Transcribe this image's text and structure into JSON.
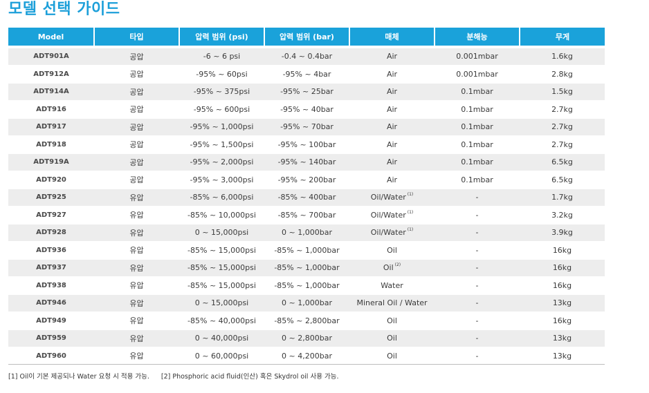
{
  "title": "모델 선택 가이드",
  "table": {
    "headers": [
      "Model",
      "타입",
      "압력 범위 (psi)",
      "압력 범위 (bar)",
      "매체",
      "분해능",
      "무게"
    ],
    "rows": [
      {
        "model": "ADT901A",
        "type": "공압",
        "psi": "-6 ~ 6 psi",
        "bar": "-0.4 ~ 0.4bar",
        "media": "Air",
        "media_note": "",
        "resolution": "0.001mbar",
        "weight": "1.6kg"
      },
      {
        "model": "ADT912A",
        "type": "공압",
        "psi": "-95% ~ 60psi",
        "bar": "-95% ~ 4bar",
        "media": "Air",
        "media_note": "",
        "resolution": "0.001mbar",
        "weight": "2.8kg"
      },
      {
        "model": "ADT914A",
        "type": "공압",
        "psi": "-95% ~ 375psi",
        "bar": "-95% ~ 25bar",
        "media": "Air",
        "media_note": "",
        "resolution": "0.1mbar",
        "weight": "1.5kg"
      },
      {
        "model": "ADT916",
        "type": "공압",
        "psi": "-95% ~ 600psi",
        "bar": "-95% ~ 40bar",
        "media": "Air",
        "media_note": "",
        "resolution": "0.1mbar",
        "weight": "2.7kg"
      },
      {
        "model": "ADT917",
        "type": "공압",
        "psi": "-95% ~ 1,000psi",
        "bar": "-95% ~ 70bar",
        "media": "Air",
        "media_note": "",
        "resolution": "0.1mbar",
        "weight": "2.7kg"
      },
      {
        "model": "ADT918",
        "type": "공압",
        "psi": "-95% ~ 1,500psi",
        "bar": "-95% ~ 100bar",
        "media": "Air",
        "media_note": "",
        "resolution": "0.1mbar",
        "weight": "2.7kg"
      },
      {
        "model": "ADT919A",
        "type": "공압",
        "psi": "-95% ~ 2,000psi",
        "bar": "-95% ~ 140bar",
        "media": "Air",
        "media_note": "",
        "resolution": "0.1mbar",
        "weight": "6.5kg"
      },
      {
        "model": "ADT920",
        "type": "공압",
        "psi": "-95% ~ 3,000psi",
        "bar": "-95% ~ 200bar",
        "media": "Air",
        "media_note": "",
        "resolution": "0.1mbar",
        "weight": "6.5kg"
      },
      {
        "model": "ADT925",
        "type": "유압",
        "psi": "-85% ~ 6,000psi",
        "bar": "-85% ~ 400bar",
        "media": "Oil/Water",
        "media_note": "(1)",
        "resolution": "-",
        "weight": "1.7kg"
      },
      {
        "model": "ADT927",
        "type": "유압",
        "psi": "-85% ~ 10,000psi",
        "bar": "-85% ~ 700bar",
        "media": "Oil/Water",
        "media_note": "(1)",
        "resolution": "-",
        "weight": "3.2kg"
      },
      {
        "model": "ADT928",
        "type": "유압",
        "psi": "0 ~ 15,000psi",
        "bar": "0 ~ 1,000bar",
        "media": "Oil/Water",
        "media_note": "(1)",
        "resolution": "-",
        "weight": "3.9kg"
      },
      {
        "model": "ADT936",
        "type": "유압",
        "psi": "-85% ~ 15,000psi",
        "bar": "-85% ~ 1,000bar",
        "media": "Oil",
        "media_note": "",
        "resolution": "-",
        "weight": "16kg"
      },
      {
        "model": "ADT937",
        "type": "유압",
        "psi": "-85% ~ 15,000psi",
        "bar": "-85% ~ 1,000bar",
        "media": "Oil",
        "media_note": "(2)",
        "resolution": "-",
        "weight": "16kg"
      },
      {
        "model": "ADT938",
        "type": "유압",
        "psi": "-85% ~ 15,000psi",
        "bar": "-85% ~ 1,000bar",
        "media": "Water",
        "media_note": "",
        "resolution": "-",
        "weight": "16kg"
      },
      {
        "model": "ADT946",
        "type": "유압",
        "psi": "0 ~ 15,000psi",
        "bar": "0 ~ 1,000bar",
        "media": "Mineral Oil / Water",
        "media_note": "",
        "resolution": "-",
        "weight": "13kg"
      },
      {
        "model": "ADT949",
        "type": "유압",
        "psi": "-85% ~ 40,000psi",
        "bar": "-85% ~ 2,800bar",
        "media": "Oil",
        "media_note": "",
        "resolution": "-",
        "weight": "16kg"
      },
      {
        "model": "ADT959",
        "type": "유압",
        "psi": "0 ~ 40,000psi",
        "bar": "0 ~ 2,800bar",
        "media": "Oil",
        "media_note": "",
        "resolution": "-",
        "weight": "13kg"
      },
      {
        "model": "ADT960",
        "type": "유압",
        "psi": "0 ~ 60,000psi",
        "bar": "0 ~ 4,200bar",
        "media": "Oil",
        "media_note": "",
        "resolution": "-",
        "weight": "13kg"
      }
    ]
  },
  "footnotes": [
    "[1] Oil이 기본 제공되나 Water 요청 시 적용 가능.",
    "[2] Phosphoric acid fluid(인산) 혹은 Skydrol oil 사용 가능."
  ],
  "colors": {
    "accent": "#1aa2da",
    "title": "#1c9fd9",
    "row_shade": "#ededed"
  }
}
